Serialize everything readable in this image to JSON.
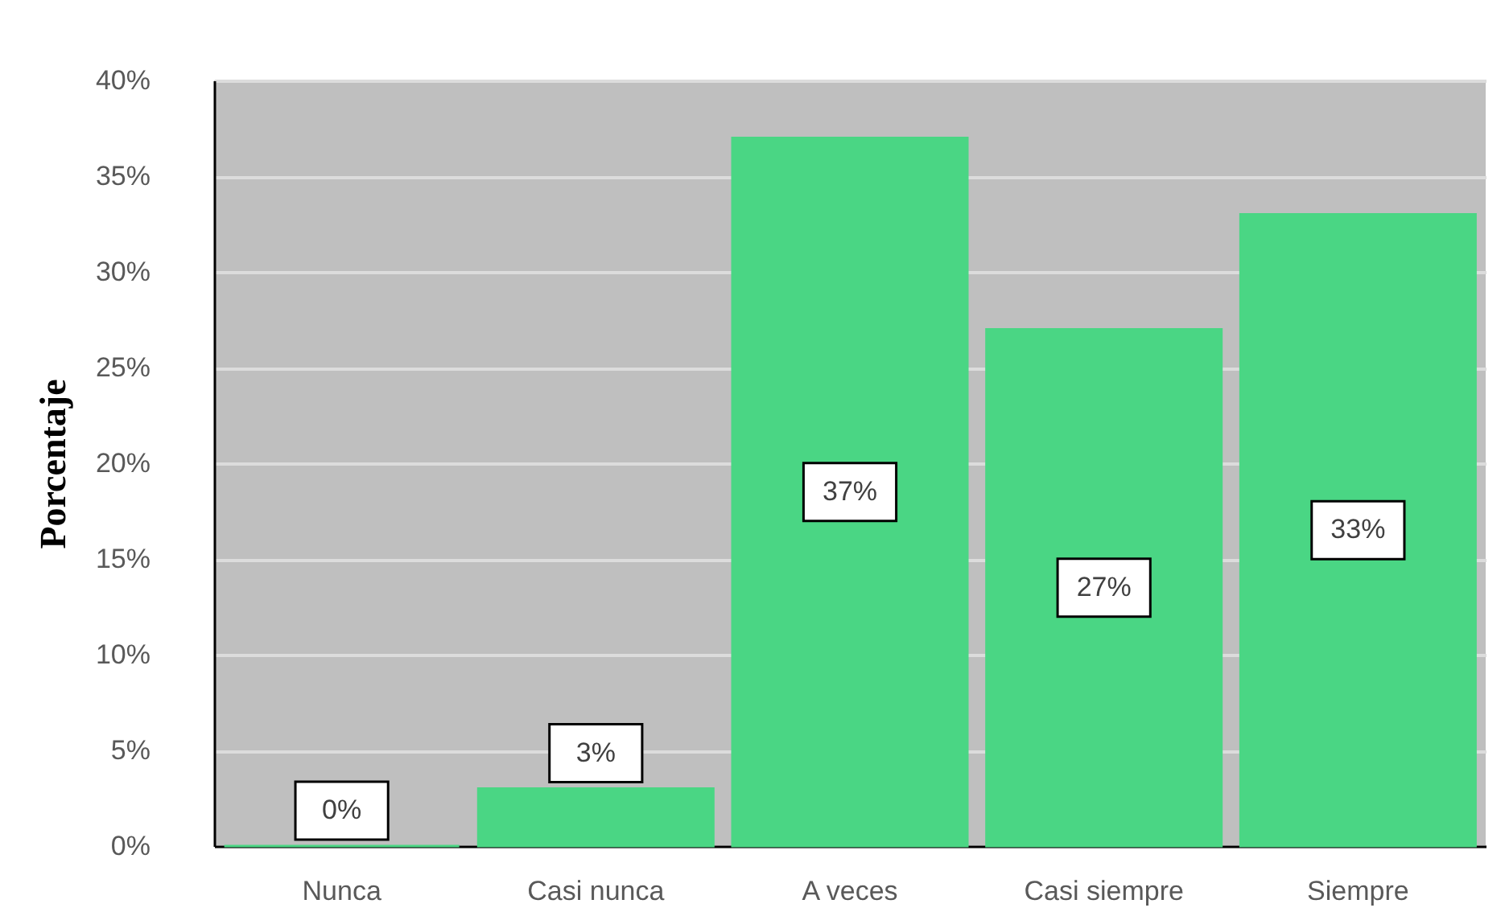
{
  "chart_data": {
    "type": "bar",
    "ylabel": "Porcentaje",
    "categories": [
      "Nunca",
      "Casi nunca",
      "A veces",
      "Casi siempre",
      "Siempre"
    ],
    "values": [
      0,
      3,
      37,
      27,
      33
    ],
    "value_labels": [
      "0%",
      "3%",
      "37%",
      "27%",
      "33%"
    ],
    "color": "#4ad684",
    "ylim": [
      0,
      40
    ],
    "yticks": [
      {
        "value": 0,
        "label": "0%"
      },
      {
        "value": 5,
        "label": "5%"
      },
      {
        "value": 10,
        "label": "10%"
      },
      {
        "value": 15,
        "label": "15%"
      },
      {
        "value": 20,
        "label": "20%"
      },
      {
        "value": 25,
        "label": "25%"
      },
      {
        "value": 30,
        "label": "30%"
      },
      {
        "value": 35,
        "label": "35%"
      },
      {
        "value": 40,
        "label": "40%"
      }
    ],
    "grid": "y"
  }
}
